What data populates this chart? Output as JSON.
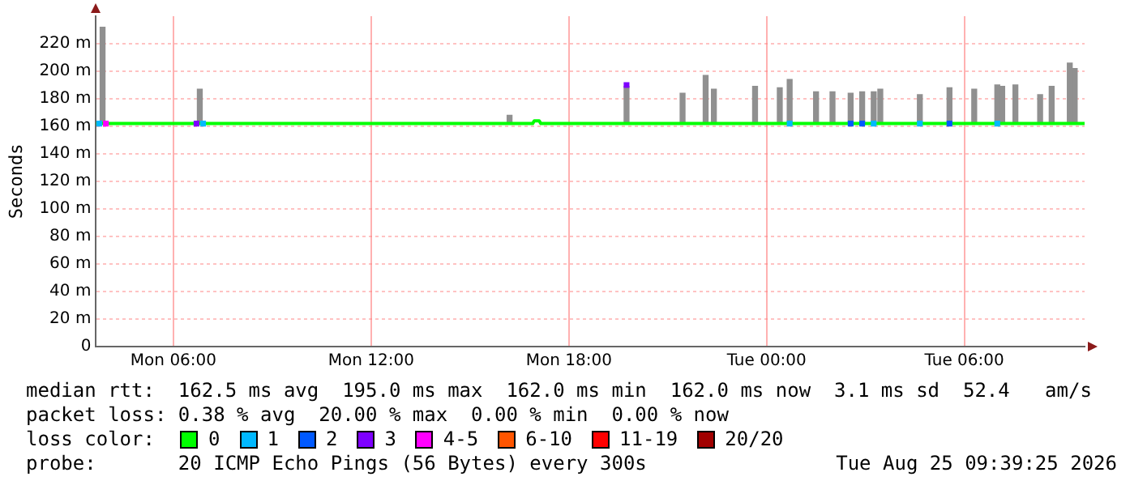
{
  "chart_data": {
    "type": "line",
    "ylabel": "Seconds",
    "legend_title": "loss color:",
    "legend": "bottom",
    "grid": true,
    "xlim": [
      "2026-08-24T03:39",
      "2026-08-25T09:39"
    ],
    "xticks": [
      {
        "value": "2026-08-24T06:00",
        "label": "Mon 06:00"
      },
      {
        "value": "2026-08-24T12:00",
        "label": "Mon 12:00"
      },
      {
        "value": "2026-08-24T18:00",
        "label": "Mon 18:00"
      },
      {
        "value": "2026-08-25T00:00",
        "label": "Tue 00:00"
      },
      {
        "value": "2026-08-25T06:00",
        "label": "Tue 06:00"
      }
    ],
    "ylim": [
      0,
      240
    ],
    "yticks": [
      {
        "value": 0,
        "label": "0"
      },
      {
        "value": 20,
        "label": "20 m"
      },
      {
        "value": 40,
        "label": "40 m"
      },
      {
        "value": 60,
        "label": "60 m"
      },
      {
        "value": 80,
        "label": "80 m"
      },
      {
        "value": 100,
        "label": "100 m"
      },
      {
        "value": 120,
        "label": "120 m"
      },
      {
        "value": 140,
        "label": "140 m"
      },
      {
        "value": 160,
        "label": "160 m"
      },
      {
        "value": 180,
        "label": "180 m"
      },
      {
        "value": 200,
        "label": "200 m"
      },
      {
        "value": 220,
        "label": "220 m"
      }
    ],
    "series": [
      {
        "type": "bar",
        "color": "#909090",
        "x": [
          "2026-08-24T03:51",
          "2026-08-24T06:48",
          "2026-08-24T16:12",
          "2026-08-24T19:45",
          "2026-08-24T21:27",
          "2026-08-24T22:09",
          "2026-08-24T22:24",
          "2026-08-24T23:39",
          "2026-08-25T00:24",
          "2026-08-25T00:42",
          "2026-08-25T01:30",
          "2026-08-25T02:00",
          "2026-08-25T02:33",
          "2026-08-25T02:54",
          "2026-08-25T03:15",
          "2026-08-25T03:27",
          "2026-08-25T04:39",
          "2026-08-25T05:33",
          "2026-08-25T06:18",
          "2026-08-25T07:00",
          "2026-08-25T07:09",
          "2026-08-25T07:33",
          "2026-08-25T08:18",
          "2026-08-25T08:39",
          "2026-08-25T09:12",
          "2026-08-25T09:21"
        ],
        "base": [
          162,
          162,
          162,
          162,
          162,
          162,
          162,
          162,
          162,
          162,
          162,
          162,
          162,
          162,
          162,
          162,
          162,
          162,
          162,
          162,
          162,
          162,
          162,
          162,
          162,
          162
        ],
        "values": [
          70,
          25,
          6,
          27,
          22,
          35,
          25,
          27,
          26,
          32,
          23,
          23,
          22,
          23,
          23,
          25,
          21,
          26,
          25,
          28,
          27,
          28,
          21,
          27,
          44,
          40
        ]
      },
      {
        "name": "0",
        "color": "#00ff00",
        "x": [
          "2026-08-24T03:39",
          "2026-08-24T16:54",
          "2026-08-24T16:57",
          "2026-08-24T17:06",
          "2026-08-24T17:09",
          "2026-08-25T09:39"
        ],
        "values": [
          162,
          162,
          164,
          164,
          162,
          162
        ]
      },
      {
        "type": "scatter",
        "marker": "square",
        "name": "1",
        "color": "#00b8ff",
        "x": [
          "2026-08-24T03:45",
          "2026-08-24T06:54",
          "2026-08-25T00:42",
          "2026-08-25T03:15",
          "2026-08-25T04:39",
          "2026-08-25T07:00"
        ],
        "values": [
          162,
          162,
          162,
          162,
          162,
          162
        ]
      },
      {
        "type": "scatter",
        "marker": "square",
        "name": "2",
        "color": "#0059ff",
        "x": [
          "2026-08-25T02:33",
          "2026-08-25T02:54",
          "2026-08-25T05:33"
        ],
        "values": [
          162,
          162,
          162
        ]
      },
      {
        "type": "scatter",
        "marker": "square",
        "name": "3",
        "color": "#7e00ff",
        "x": [
          "2026-08-24T06:42",
          "2026-08-24T19:45"
        ],
        "values": [
          162,
          190
        ]
      },
      {
        "type": "scatter",
        "marker": "square",
        "name": "4-5",
        "color": "#ff00fe",
        "x": [
          "2026-08-24T03:57"
        ],
        "values": [
          162
        ]
      },
      {
        "type": "scatter",
        "marker": "square",
        "name": "6-10",
        "color": "#ff5500"
      },
      {
        "type": "scatter",
        "marker": "square",
        "name": "11-19",
        "color": "#ff0000"
      },
      {
        "type": "scatter",
        "marker": "square",
        "name": "20/20",
        "color": "#a10000"
      }
    ],
    "annotations": [
      "median rtt:  162.5 ms avg  195.0 ms max  162.0 ms min  162.0 ms now  3.1 ms sd  52.4   am/s",
      "packet loss: 0.38 % avg  20.00 % max  0.00 % min  0.00 % now",
      "probe:       20 ICMP Echo Pings (56 Bytes) every 300s",
      "Tue Aug 25 09:39:25 2026"
    ]
  }
}
